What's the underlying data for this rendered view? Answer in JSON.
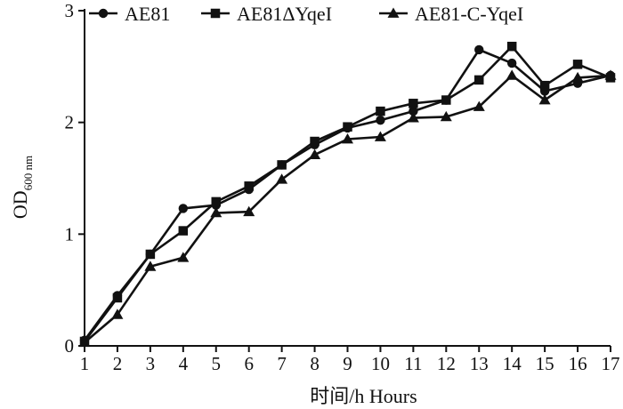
{
  "chart_data": {
    "type": "line",
    "title": "",
    "xlabel": "时间/h Hours",
    "ylabel": {
      "main": "OD",
      "sub": "600 nm"
    },
    "x": [
      1,
      2,
      3,
      4,
      5,
      6,
      7,
      8,
      9,
      10,
      11,
      12,
      13,
      14,
      15,
      16,
      17
    ],
    "xlim": [
      1,
      17
    ],
    "ylim": [
      0,
      3
    ],
    "yticks": [
      0,
      1,
      2,
      3
    ],
    "grid": false,
    "legend_position": "top",
    "series": [
      {
        "name": "AE81",
        "marker": "circle",
        "values": [
          0.05,
          0.45,
          0.82,
          1.23,
          1.26,
          1.4,
          1.62,
          1.8,
          1.95,
          2.02,
          2.1,
          2.2,
          2.65,
          2.53,
          2.28,
          2.35,
          2.42
        ]
      },
      {
        "name": "AE81ΔYqeI",
        "marker": "square",
        "values": [
          0.04,
          0.43,
          0.82,
          1.03,
          1.29,
          1.43,
          1.62,
          1.83,
          1.96,
          2.1,
          2.17,
          2.2,
          2.38,
          2.68,
          2.33,
          2.52,
          2.4
        ]
      },
      {
        "name": "AE81-C-YqeI",
        "marker": "triangle",
        "values": [
          0.03,
          0.28,
          0.71,
          0.79,
          1.19,
          1.2,
          1.49,
          1.71,
          1.85,
          1.87,
          2.04,
          2.05,
          2.14,
          2.42,
          2.2,
          2.4,
          2.42
        ]
      }
    ],
    "colors": {
      "lines": "#111111",
      "background": "#ffffff"
    }
  }
}
